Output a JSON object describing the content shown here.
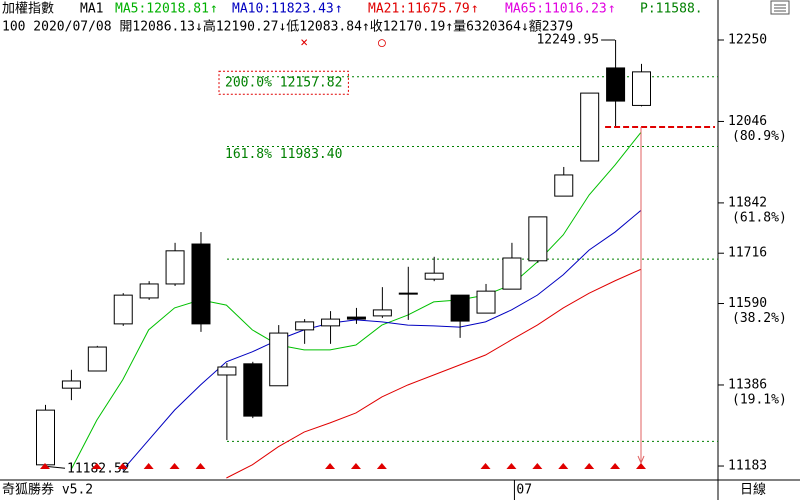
{
  "chart_data": {
    "type": "candlestick",
    "title": "加權指數",
    "period": "MA1",
    "header_items": [
      {
        "text": "MA5:12018.81",
        "arrow": "↑",
        "color": "#00b000"
      },
      {
        "text": "MA10:11823.43",
        "arrow": "↑",
        "color": "#0000c0"
      },
      {
        "text": "MA21:11675.79",
        "arrow": "↑",
        "color": "#e00000"
      },
      {
        "text": "MA65:11016.23",
        "arrow": "↑",
        "color": "#e000e0"
      },
      {
        "text": "P:11588.",
        "arrow": null,
        "color": "#008000"
      }
    ],
    "quote": "100 2020/07/08 開12086.13↓高12190.27↓低12083.84↑收12170.19↑量6320364↓額2379",
    "categories": [
      null,
      null,
      null,
      null,
      null,
      null,
      null,
      null,
      null,
      null,
      null,
      null,
      null,
      null,
      null,
      null,
      null,
      null,
      "07",
      null,
      null,
      null,
      null,
      null
    ],
    "open": [
      11186,
      11378,
      11421,
      11539,
      11604,
      11639,
      11739,
      11411,
      11439,
      11384,
      11524,
      11534,
      11556,
      11559,
      11614,
      11651,
      11611,
      11566,
      11626,
      11697,
      11859,
      11947,
      12180,
      12086.13
    ],
    "high": [
      11336,
      11424,
      11484,
      11616,
      11646,
      11742,
      11769,
      11441,
      11444,
      11536,
      11551,
      11571,
      11579,
      11631,
      11682,
      11707,
      11611,
      11639,
      11742,
      11807,
      11932,
      12117,
      12249.95,
      12190.27
    ],
    "low": [
      11182.52,
      11348,
      11421,
      11534,
      11599,
      11634,
      11519,
      11248,
      11303,
      11384,
      11489,
      11489,
      11539,
      11554,
      11549,
      11646,
      11504,
      11566,
      11626,
      11692,
      11859,
      11947,
      12030,
      12083.84
    ],
    "close": [
      11323,
      11396,
      11481,
      11611,
      11639,
      11722,
      11539,
      11431,
      11308,
      11516,
      11544,
      11551,
      11551,
      11574,
      11616,
      11666,
      11546,
      11621,
      11704,
      11807,
      11912,
      12117,
      12097,
      12170.19
    ],
    "series": [
      {
        "color": "#00c000",
        "values": [
          null,
          11173,
          11298,
          11399,
          11524,
          11579,
          11599,
          11586,
          11524,
          11486,
          11474,
          11474,
          11486,
          11536,
          11561,
          11594,
          11599,
          11611,
          11637,
          11694,
          11762,
          11862,
          11937,
          12018.81
        ]
      },
      {
        "color": "#0000c0",
        "values": [
          null,
          null,
          null,
          11173,
          11248,
          11323,
          11386,
          11444,
          11469,
          11499,
          11524,
          11541,
          11549,
          11544,
          11536,
          11534,
          11531,
          11544,
          11574,
          11611,
          11662,
          11724,
          11769,
          11823.43
        ]
      },
      {
        "color": "#e00000",
        "values": [
          null,
          null,
          null,
          null,
          null,
          null,
          null,
          11153,
          11186,
          11231,
          11268,
          11291,
          11316,
          11356,
          11386,
          11411,
          11436,
          11461,
          11499,
          11536,
          11579,
          11616,
          11647,
          11675.79
        ]
      }
    ],
    "ylim": [
      11148,
      12260
    ],
    "yticks": [
      12250,
      12046,
      11842,
      11716,
      11590,
      11386,
      11183
    ],
    "ytick_notes": [
      null,
      "(80.9%)",
      "(61.8%)",
      null,
      "(38.2%)",
      "(19.1%)",
      null
    ],
    "reference_lines": [
      {
        "value": 12157.82,
        "label": "200.0% 12157.82"
      },
      {
        "value": 11983.4,
        "label": "161.8% 11983.40"
      },
      {
        "value": 11701.2
      },
      {
        "value": 11244.6
      }
    ],
    "stop_line": 12032,
    "top_marks": [
      null,
      null,
      null,
      null,
      null,
      null,
      null,
      null,
      null,
      null,
      "×",
      null,
      null,
      "○",
      null,
      null,
      null,
      null,
      null,
      null,
      null,
      null,
      null,
      null
    ],
    "signals": [
      true,
      false,
      true,
      true,
      true,
      true,
      true,
      false,
      false,
      false,
      false,
      true,
      true,
      true,
      false,
      false,
      false,
      true,
      true,
      true,
      true,
      true,
      true,
      true
    ],
    "brand": "奇狐勝券 v5.2",
    "timeframe": "日線"
  }
}
